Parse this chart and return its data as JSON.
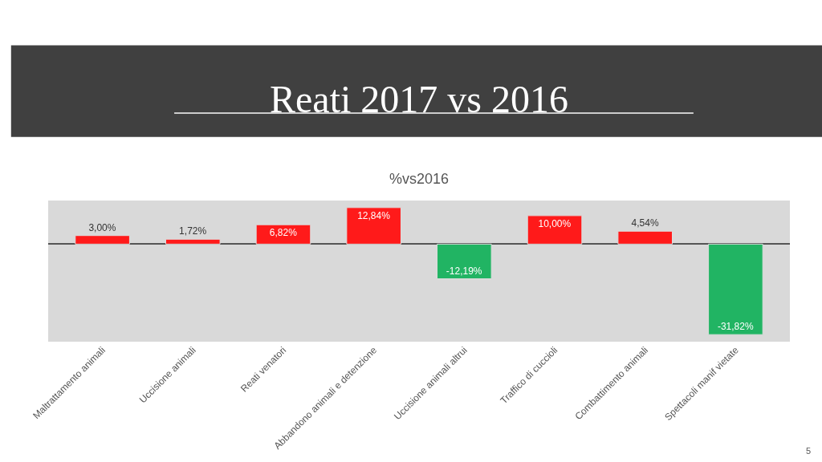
{
  "chart_data": {
    "type": "bar",
    "title": "Reati 2017 vs 2016",
    "subtitle": "%vs2016",
    "categories": [
      "Maltrattamento animali",
      "Uccisione animali",
      "Reati venatori",
      "Abbandono animali e detenzione",
      "Uccisione animali altrui",
      "Traffico di cuccioli",
      "Combattimento animali",
      "Spettacoli manif vietate"
    ],
    "values": [
      3.0,
      1.72,
      6.82,
      12.84,
      -12.19,
      10.0,
      4.54,
      -31.82
    ],
    "value_labels": [
      "3,00%",
      "1,72%",
      "6,82%",
      "12,84%",
      "-12,19%",
      "10,00%",
      "4,54%",
      "-31,82%"
    ],
    "colors": [
      "#ff1a1a",
      "#ff1a1a",
      "#ff1a1a",
      "#ff1a1a",
      "#21b463",
      "#ff1a1a",
      "#ff1a1a",
      "#21b463"
    ],
    "tick_labels": "x",
    "legend": false,
    "annotations": [
      "5"
    ]
  }
}
